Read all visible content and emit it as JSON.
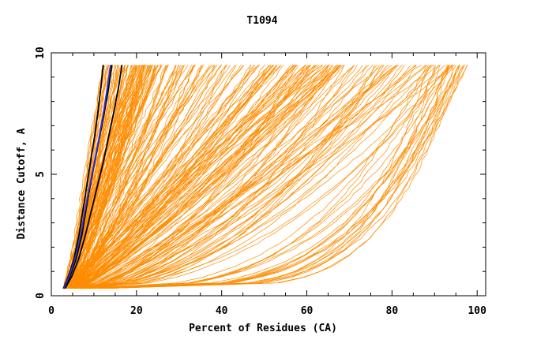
{
  "chart_data": {
    "type": "line",
    "title": "T1094",
    "xlabel": "Percent of Residues (CA)",
    "ylabel": "Distance Cutoff, A",
    "xlim": [
      0,
      102
    ],
    "ylim": [
      0,
      10
    ],
    "x_ticks": [
      0,
      20,
      40,
      60,
      80,
      100
    ],
    "y_ticks": [
      0,
      5,
      10
    ],
    "x_tick_labels": [
      "0",
      "20",
      "40",
      "60",
      "80",
      "100"
    ],
    "y_tick_labels": [
      "0",
      "5",
      "10"
    ],
    "grid": false,
    "legend": "none",
    "colors": {
      "bulk": "#ff8c00",
      "highlight": "#000000",
      "reference": "#3333cc"
    },
    "y_samples": [
      0.3,
      0.8,
      1.5,
      2.5,
      3.5,
      4.5,
      5.5,
      6.5,
      7.5,
      8.5,
      9.5
    ],
    "highlight_series": [
      {
        "color": "#000000",
        "x": [
          2.8,
          4.0,
          5.3,
          6.5,
          7.4,
          8.3,
          9.2,
          10.1,
          10.9,
          11.6,
          12.2
        ]
      },
      {
        "color": "#000000",
        "x": [
          3.0,
          4.4,
          5.8,
          7.2,
          8.1,
          9.1,
          10.2,
          11.3,
          12.4,
          13.4,
          14.2
        ]
      },
      {
        "color": "#000000",
        "x": [
          3.2,
          4.8,
          6.4,
          8.0,
          9.4,
          10.8,
          12.2,
          13.4,
          14.6,
          15.7,
          16.6
        ]
      },
      {
        "color": "#3333cc",
        "x": [
          2.9,
          4.2,
          5.5,
          6.9,
          7.9,
          9.0,
          10.1,
          11.2,
          12.2,
          13.1,
          13.9
        ]
      }
    ]
  }
}
